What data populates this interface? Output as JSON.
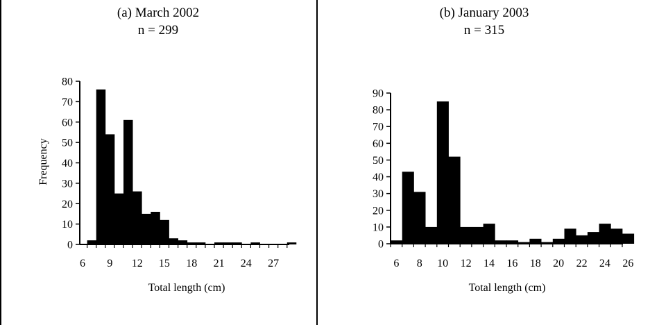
{
  "chart_data": [
    {
      "type": "bar",
      "title": "(a) March 2002",
      "subtitle": "n = 299",
      "xlabel": "Total length (cm)",
      "ylabel": "Frequency",
      "x": [
        6,
        7,
        8,
        9,
        10,
        11,
        12,
        13,
        14,
        15,
        16,
        17,
        18,
        19,
        20,
        21,
        22,
        23,
        24,
        25,
        26,
        27,
        28,
        29
      ],
      "values": [
        0,
        2,
        76,
        54,
        25,
        61,
        26,
        15,
        16,
        12,
        3,
        2,
        1,
        1,
        0,
        1,
        1,
        1,
        0,
        1,
        0,
        0,
        0,
        1
      ],
      "x_ticks": [
        "6",
        "9",
        "12",
        "15",
        "18",
        "21",
        "24",
        "27"
      ],
      "y_ticks": [
        "0",
        "10",
        "20",
        "30",
        "40",
        "50",
        "60",
        "70",
        "80"
      ],
      "ylim": [
        0,
        80
      ],
      "grid": false
    },
    {
      "type": "bar",
      "title": "(b) January 2003",
      "subtitle": "n = 315",
      "xlabel": "Total length (cm)",
      "ylabel": "",
      "x": [
        6,
        7,
        8,
        9,
        10,
        11,
        12,
        13,
        14,
        15,
        16,
        17,
        18,
        19,
        20,
        21,
        22,
        23,
        24,
        25,
        26
      ],
      "values": [
        2,
        43,
        31,
        10,
        85,
        52,
        10,
        10,
        12,
        2,
        2,
        1,
        3,
        1,
        3,
        9,
        5,
        7,
        12,
        9,
        6
      ],
      "x_ticks": [
        "6",
        "8",
        "10",
        "12",
        "14",
        "16",
        "18",
        "20",
        "22",
        "24",
        "26"
      ],
      "y_ticks": [
        "0",
        "10",
        "20",
        "30",
        "40",
        "50",
        "60",
        "70",
        "80",
        "90"
      ],
      "ylim": [
        0,
        90
      ],
      "grid": false
    }
  ]
}
